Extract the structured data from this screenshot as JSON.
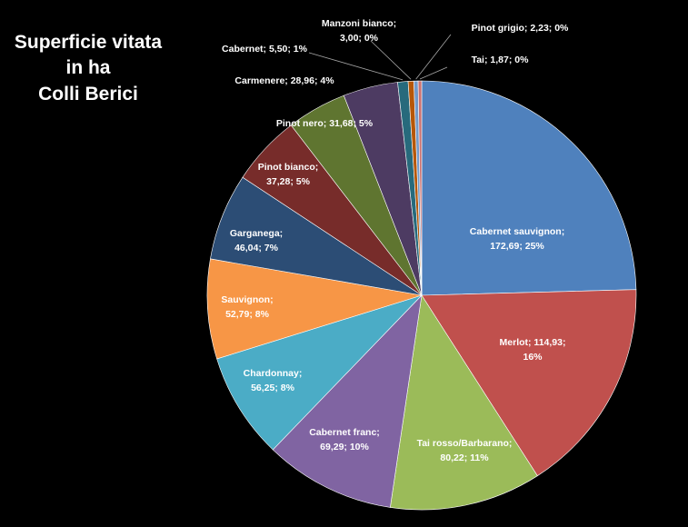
{
  "chart_data": {
    "type": "pie",
    "title_lines": [
      "Superficie vitata",
      "in ha",
      "Colli Berici"
    ],
    "slices": [
      {
        "name": "Cabernet sauvignon",
        "value": 172.69,
        "value_text": "172,69",
        "percent_text": "25%",
        "color": "#4F81BD"
      },
      {
        "name": "Merlot",
        "value": 114.93,
        "value_text": "114,93",
        "percent_text": "16%",
        "color": "#C0504D"
      },
      {
        "name": "Tai rosso/Barbarano",
        "value": 80.22,
        "value_text": "80,22",
        "percent_text": "11%",
        "color": "#9BBB59"
      },
      {
        "name": "Cabernet franc",
        "value": 69.29,
        "value_text": "69,29",
        "percent_text": "10%",
        "color": "#8064A2"
      },
      {
        "name": "Chardonnay",
        "value": 56.25,
        "value_text": "56,25",
        "percent_text": "8%",
        "color": "#4BACC6"
      },
      {
        "name": "Sauvignon",
        "value": 52.79,
        "value_text": "52,79",
        "percent_text": "8%",
        "color": "#F79646"
      },
      {
        "name": "Garganega",
        "value": 46.04,
        "value_text": "46,04",
        "percent_text": "7%",
        "color": "#2C4D75"
      },
      {
        "name": "Pinot bianco",
        "value": 37.28,
        "value_text": "37,28",
        "percent_text": "5%",
        "color": "#772C2A"
      },
      {
        "name": "Pinot nero",
        "value": 31.68,
        "value_text": "31,68",
        "percent_text": "5%",
        "color": "#5F7530"
      },
      {
        "name": "Carmenere",
        "value": 28.96,
        "value_text": "28,96",
        "percent_text": "4%",
        "color": "#4D3B62"
      },
      {
        "name": "Cabernet",
        "value": 5.5,
        "value_text": "5,50",
        "percent_text": "1%",
        "color": "#276A7C"
      },
      {
        "name": "Manzoni bianco",
        "value": 3.0,
        "value_text": "3,00",
        "percent_text": "0%",
        "color": "#B65708"
      },
      {
        "name": "Pinot grigio",
        "value": 2.23,
        "value_text": "2,23",
        "percent_text": "0%",
        "color": "#729ACA"
      },
      {
        "name": "Tai",
        "value": 1.87,
        "value_text": "1,87",
        "percent_text": "0%",
        "color": "#CD7371"
      }
    ],
    "legend": "none"
  }
}
